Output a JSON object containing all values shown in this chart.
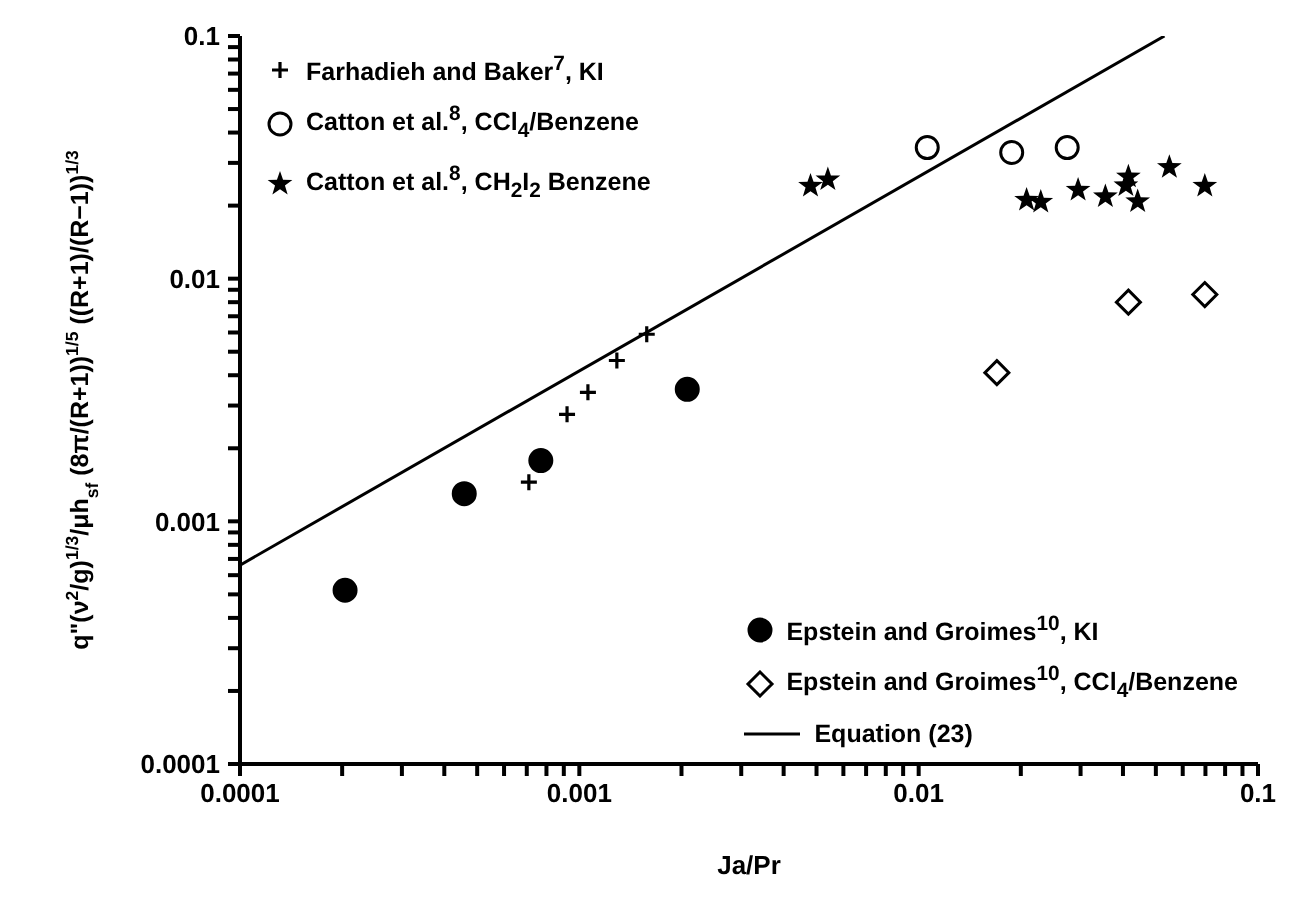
{
  "chart_data": {
    "type": "scatter",
    "xlabel": "Ja/Pr",
    "ylabel": "q\"(ν$^{2}$/g)$^{1/3}$/μh$_{sf}$ (8π/(R+1))$^{1/5}$ ((R+1)/(R−1))$^{1/3}$",
    "log": "xy",
    "grid": false,
    "legend": "bottom right",
    "xlim": [
      0.0001,
      0.1
    ],
    "ylim": [
      0.0001,
      0.1
    ],
    "xticks": [
      0.0001,
      {
        "value": 0.0002,
        "label": null
      },
      {
        "value": 0.0003,
        "label": null
      },
      {
        "value": 0.0004,
        "label": null
      },
      {
        "value": 0.0005,
        "label": null
      },
      {
        "value": 0.0006,
        "label": null
      },
      {
        "value": 0.0007,
        "label": null
      },
      {
        "value": 0.0008,
        "label": null
      },
      {
        "value": 0.0009,
        "label": null
      },
      0.001,
      {
        "value": 0.002,
        "label": null
      },
      {
        "value": 0.003,
        "label": null
      },
      {
        "value": 0.004,
        "label": null
      },
      {
        "value": 0.005,
        "label": null
      },
      {
        "value": 0.006,
        "label": null
      },
      {
        "value": 0.007,
        "label": null
      },
      {
        "value": 0.008,
        "label": null
      },
      {
        "value": 0.009,
        "label": null
      },
      0.01,
      {
        "value": 0.02,
        "label": null
      },
      {
        "value": 0.03,
        "label": null
      },
      {
        "value": 0.04,
        "label": null
      },
      {
        "value": 0.05,
        "label": null
      },
      {
        "value": 0.06,
        "label": null
      },
      {
        "value": 0.07,
        "label": null
      },
      {
        "value": 0.08,
        "label": null
      },
      {
        "value": 0.09,
        "label": null
      },
      0.1
    ],
    "yticks": [
      0.0001,
      {
        "value": 0.0002,
        "label": null
      },
      {
        "value": 0.0003,
        "label": null
      },
      {
        "value": 0.0004,
        "label": null
      },
      {
        "value": 0.0005,
        "label": null
      },
      {
        "value": 0.0006,
        "label": null
      },
      {
        "value": 0.0007,
        "label": null
      },
      {
        "value": 0.0008,
        "label": null
      },
      {
        "value": 0.0009,
        "label": null
      },
      0.001,
      {
        "value": 0.002,
        "label": null
      },
      {
        "value": 0.003,
        "label": null
      },
      {
        "value": 0.004,
        "label": null
      },
      {
        "value": 0.005,
        "label": null
      },
      {
        "value": 0.006,
        "label": null
      },
      {
        "value": 0.007,
        "label": null
      },
      {
        "value": 0.008,
        "label": null
      },
      {
        "value": 0.009,
        "label": null
      },
      0.01,
      {
        "value": 0.02,
        "label": null
      },
      {
        "value": 0.03,
        "label": null
      },
      {
        "value": 0.04,
        "label": null
      },
      {
        "value": 0.05,
        "label": null
      },
      {
        "value": 0.06,
        "label": null
      },
      {
        "value": 0.07,
        "label": null
      },
      {
        "value": 0.08,
        "label": null
      },
      {
        "value": 0.09,
        "label": null
      },
      0.1
    ],
    "series": [
      {
        "name": "Farhadieh and Baker$^{7}$, KI",
        "color": "#000000",
        "marker": "cross",
        "x": [
          0.00071,
          0.00092,
          0.00106,
          0.00129,
          0.00158
        ],
        "values": [
          0.00145,
          0.00276,
          0.0034,
          0.0046,
          0.0059
        ]
      },
      {
        "name": "Catton et al.$^{8}$, CCl$_{4}$/Benzene",
        "color": "#ffffff",
        "marker": "circle",
        "x": [
          0.0106,
          0.0188,
          0.0274
        ],
        "values": [
          0.0347,
          0.0331,
          0.0347
        ]
      },
      {
        "name": "Catton et al.$^{8}$, CH$_{2}$I$_{2}$ Benzene",
        "color": "#000000",
        "marker": "star",
        "x": [
          0.0048,
          0.0054,
          0.0208,
          0.0229,
          0.0295,
          0.0355,
          0.0408,
          0.0415,
          0.0442,
          0.0548,
          0.0697
        ],
        "values": [
          0.0241,
          0.0256,
          0.0211,
          0.0207,
          0.0232,
          0.0218,
          0.0242,
          0.0263,
          0.0208,
          0.0288,
          0.0241
        ]
      },
      {
        "name": "Epstein and Groimes$^{10}$, KI",
        "color": "#000000",
        "marker": "circle",
        "x": [
          0.000204,
          0.000458,
          0.00077,
          0.00208
        ],
        "values": [
          0.00052,
          0.0013,
          0.00178,
          0.0035
        ]
      },
      {
        "name": "Epstein and Groimes$^{10}$, CCl$_{4}$/Benzene",
        "color": "#ffffff",
        "marker": "diamond",
        "x": [
          0.017,
          0.0415,
          0.0697
        ],
        "values": [
          0.0041,
          0.008,
          0.0086
        ]
      },
      {
        "name": "Equation (23)",
        "type": "line",
        "color": "#000000",
        "marker": "none",
        "line_style": "solid",
        "x": [
          0.0001,
          0.053
        ],
        "values": [
          0.00066,
          0.1
        ]
      }
    ]
  }
}
